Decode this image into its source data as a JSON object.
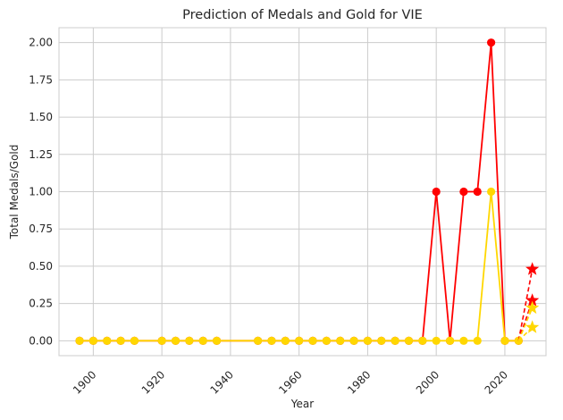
{
  "chart_data": {
    "type": "line",
    "title": "Prediction of Medals and Gold for VIE",
    "xlabel": "Year",
    "ylabel": "Total Medals/Gold",
    "xlim": [
      1890,
      2032
    ],
    "ylim": [
      -0.1,
      2.1
    ],
    "xticks": [
      1900,
      1920,
      1940,
      1960,
      1980,
      2000,
      2020
    ],
    "yticks": [
      0.0,
      0.25,
      0.5,
      0.75,
      1.0,
      1.25,
      1.5,
      1.75,
      2.0
    ],
    "ytick_labels": [
      "0.00",
      "0.25",
      "0.50",
      "0.75",
      "1.00",
      "1.25",
      "1.50",
      "1.75",
      "2.00"
    ],
    "grid": true,
    "legend": "none",
    "x": [
      1896,
      1900,
      1904,
      1908,
      1912,
      1920,
      1924,
      1928,
      1932,
      1936,
      1948,
      1952,
      1956,
      1960,
      1964,
      1968,
      1972,
      1976,
      1980,
      1984,
      1988,
      1992,
      1996,
      2000,
      2004,
      2008,
      2012,
      2016,
      2020,
      2024
    ],
    "series": [
      {
        "color": "#ff0000",
        "values": [
          0,
          0,
          0,
          0,
          0,
          0,
          0,
          0,
          0,
          0,
          0,
          0,
          0,
          0,
          0,
          0,
          0,
          0,
          0,
          0,
          0,
          0,
          0,
          1,
          0,
          1,
          1,
          2,
          0,
          0
        ]
      },
      {
        "color": "#ffd700",
        "values": [
          0,
          0,
          0,
          0,
          0,
          0,
          0,
          0,
          0,
          0,
          0,
          0,
          0,
          0,
          0,
          0,
          0,
          0,
          0,
          0,
          0,
          0,
          0,
          0,
          0,
          0,
          0,
          1,
          0,
          0
        ]
      }
    ],
    "predictions": [
      {
        "color": "#ff0000",
        "from": [
          2024,
          0
        ],
        "points": [
          [
            2028,
            0.48
          ],
          [
            2028,
            0.27
          ]
        ]
      },
      {
        "color": "#ffd700",
        "from": [
          2024,
          0
        ],
        "points": [
          [
            2028,
            0.22
          ],
          [
            2028,
            0.09
          ]
        ]
      }
    ]
  }
}
